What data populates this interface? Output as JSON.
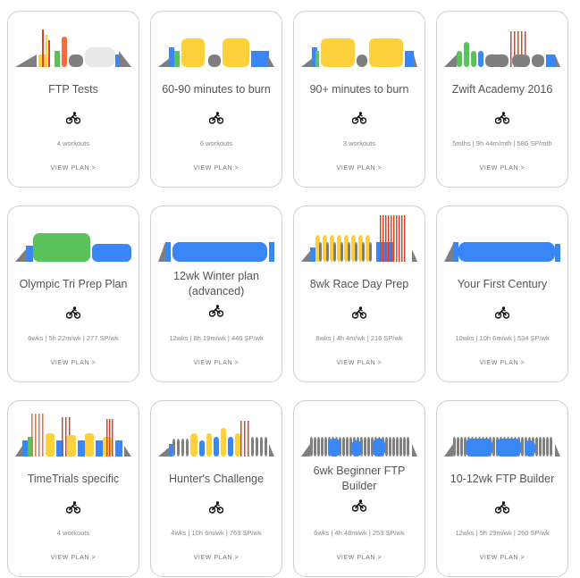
{
  "view_label": "VIEW PLAN >",
  "colors": {
    "gray": "#7f7f7f",
    "blue": "#3a86f7",
    "green": "#5bc25b",
    "yellow": "#fdd13c",
    "orange": "#fb6a3c",
    "red": "#d8442b",
    "white": "#e8e8e8"
  },
  "plans": [
    {
      "title": [
        "FTP Tests"
      ],
      "meta": "4 workouts",
      "icon": "cyclist-icon"
    },
    {
      "title": [
        "60-90 minutes to burn"
      ],
      "meta": "6 workouts",
      "icon": "cyclist-icon"
    },
    {
      "title": [
        "90+ minutes to burn"
      ],
      "meta": "3 workouts",
      "icon": "cyclist-icon"
    },
    {
      "title": [
        "Zwift Academy 2016"
      ],
      "meta": "5mths | 9h 44m/mth | 586 SP/mth",
      "icon": "cyclist-icon"
    },
    {
      "title": [
        "Olympic Tri Prep Plan"
      ],
      "meta": "6wks | 5h 22m/wk | 277 SP/wk",
      "icon": "cyclist-icon"
    },
    {
      "title": [
        "12wk Winter plan",
        "(advanced)"
      ],
      "meta": "12wks | 8h 19m/wk | 446 SP/wk",
      "icon": "cyclist-icon"
    },
    {
      "title": [
        "8wk Race Day Prep"
      ],
      "meta": "8wks | 4h 4m/wk | 216 SP/wk",
      "icon": "cyclist-icon"
    },
    {
      "title": [
        "Your First Century"
      ],
      "meta": "10wks | 10h 6m/wk | 534 SP/wk",
      "icon": "cyclist-icon"
    },
    {
      "title": [
        "TimeTrials specific"
      ],
      "meta": "4 workouts",
      "icon": "cyclist-icon"
    },
    {
      "title": [
        "Hunter's Challenge"
      ],
      "meta": "4wks | 10h 6m/wk | 769 SP/wk",
      "icon": "cyclist-icon"
    },
    {
      "title": [
        "6wk Beginner FTP",
        "Builder"
      ],
      "meta": "6wks | 4h 48m/wk | 253 SP/wk",
      "icon": "cyclist-icon"
    },
    {
      "title": [
        "10-12wk FTP Builder"
      ],
      "meta": "12wks | 5h 29m/wk | 260 SP/wk",
      "icon": "cyclist-icon"
    }
  ]
}
